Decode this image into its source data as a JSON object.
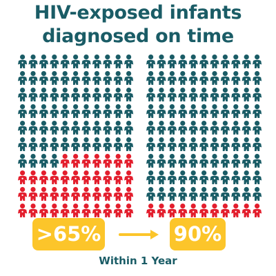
{
  "colors": {
    "title": "#1a5c66",
    "diagnosed": "#1a5c66",
    "not_diagnosed": "#e31e2d",
    "badge": "#fcc52a",
    "arrow": "#fcc52a",
    "caption": "#1a5c66"
  },
  "icon": "infant-icon",
  "chart_data": {
    "type": "pictograph",
    "title_lines": [
      "HIV-exposed infants",
      "diagnosed on time"
    ],
    "caption": "Within 1 Year",
    "panels": [
      {
        "label": ">65%",
        "rows": 10,
        "cols": 11,
        "diagnosed_share": 0.65
      },
      {
        "label": "90%",
        "rows": 10,
        "cols": 11,
        "diagnosed_share": 0.9
      }
    ]
  }
}
